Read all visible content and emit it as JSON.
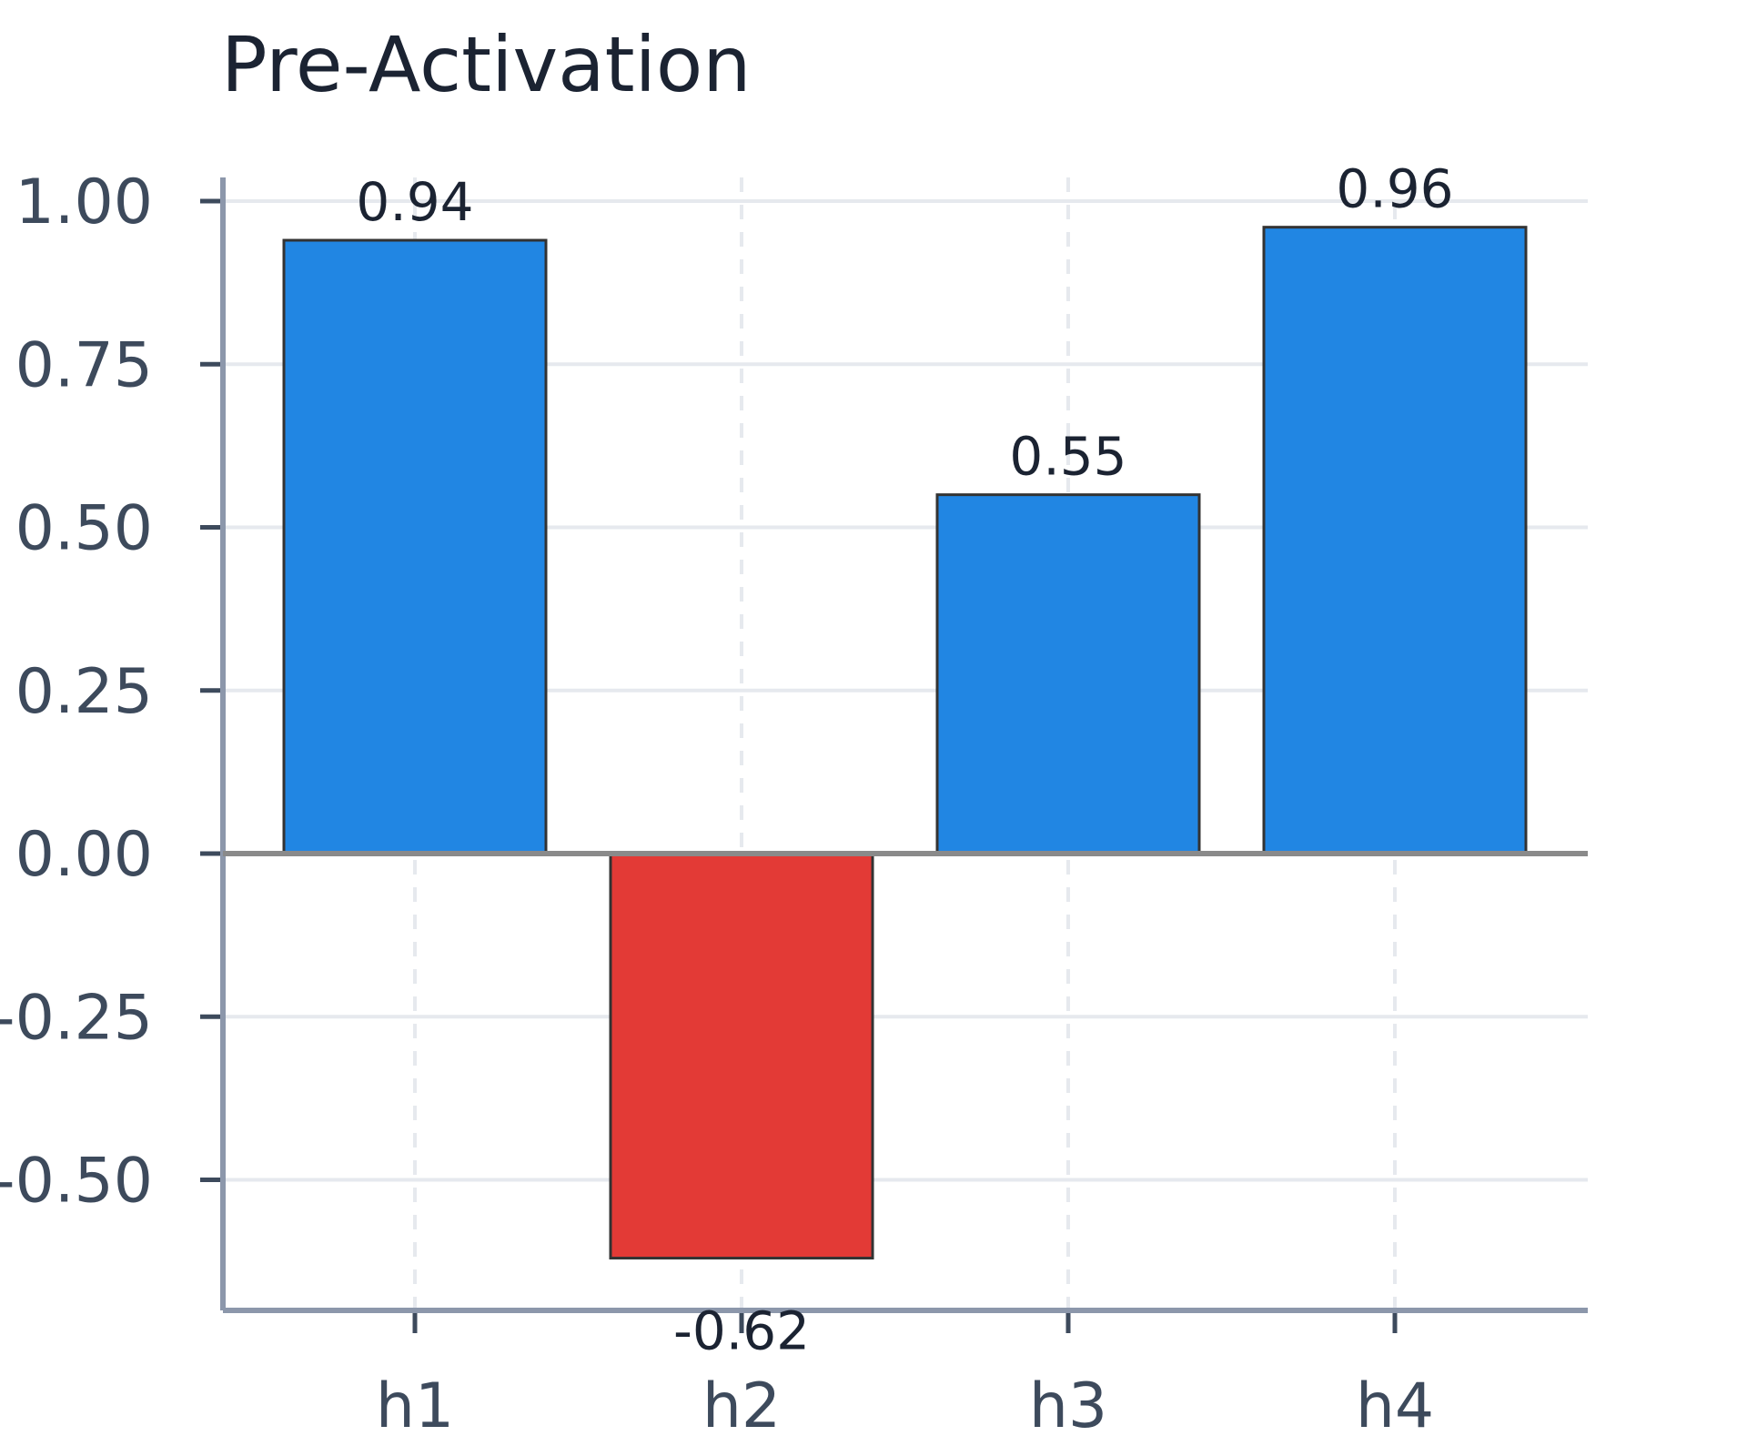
{
  "chart_data": {
    "type": "bar",
    "title": "Pre-Activation",
    "categories": [
      "h1",
      "h2",
      "h3",
      "h4"
    ],
    "values": [
      0.94,
      -0.62,
      0.55,
      0.96
    ],
    "value_labels": [
      "0.94",
      "-0.62",
      "0.55",
      "0.96"
    ],
    "ylim": [
      -0.7,
      1.04
    ],
    "yticks": [
      1.0,
      0.75,
      0.5,
      0.25,
      0.0,
      -0.25,
      -0.5
    ],
    "ytick_labels": [
      "1.00",
      "0.75",
      "0.50",
      "0.25",
      "0.00",
      "-0.25",
      "-0.50"
    ],
    "grid": true,
    "colors": {
      "positive": "#2186e3",
      "negative": "#e33a36",
      "bar_edge": "#333333",
      "axis": "#8c97ab",
      "grid": "#e6e9ee",
      "zero_line": "#8a8a8a"
    }
  }
}
